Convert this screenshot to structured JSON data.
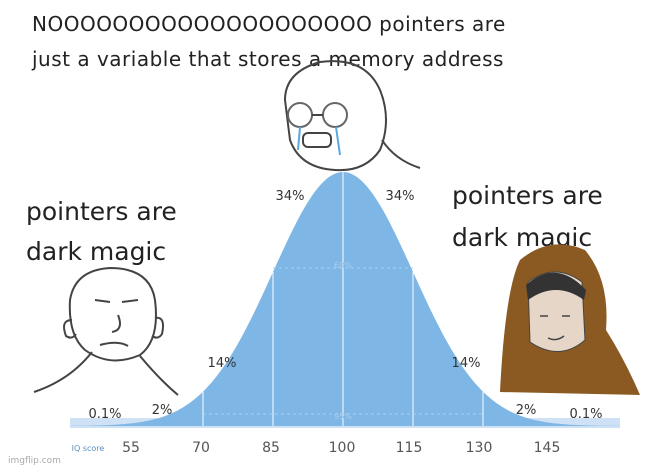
{
  "caption": {
    "line1": "NOOOOOOOOOOOOOOOOOOOO pointers are",
    "line2": "just a variable that stores a memory address"
  },
  "left_text": {
    "line1": "pointers are",
    "line2": "dark magic"
  },
  "right_text": {
    "line1": "pointers are",
    "line2": "dark magic"
  },
  "curve": {
    "percent_labels": [
      "0.1%",
      "2%",
      "14%",
      "34%",
      "34%",
      "14%",
      "2%",
      "0.1%"
    ],
    "band_labels": [
      "68%",
      "95%"
    ],
    "axis_title": "IQ score",
    "axis_labels": [
      "55",
      "70",
      "85",
      "100",
      "115",
      "130",
      "145"
    ]
  },
  "watermark": "imgflip.com"
}
